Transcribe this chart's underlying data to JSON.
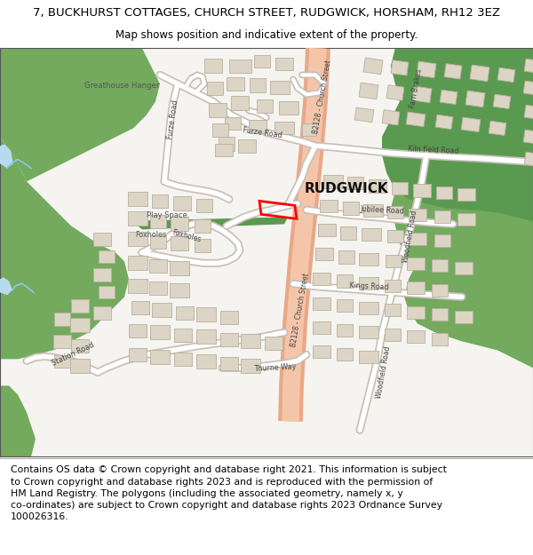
{
  "title_line1": "7, BUCKHURST COTTAGES, CHURCH STREET, RUDGWICK, HORSHAM, RH12 3EZ",
  "title_line2": "Map shows position and indicative extent of the property.",
  "footer": "Contains OS data © Crown copyright and database right 2021. This information is subject\nto Crown copyright and database rights 2023 and is reproduced with the permission of\nHM Land Registry. The polygons (including the associated geometry, namely x, y\nco-ordinates) are subject to Crown copyright and database rights 2023 Ordnance Survey\n100026316.",
  "map_bg": "#f5f4f0",
  "road_main_color": "#f2b89c",
  "road_secondary_color": "#ffffff",
  "green_color": "#73aa5e",
  "blue_color": "#b8daf0",
  "building_fill": "#dcd4c4",
  "building_edge": "#b8b0a0",
  "plot_color": "#ff0000",
  "title_fontsize": 9.5,
  "subtitle_fontsize": 8.5,
  "footer_fontsize": 7.8,
  "label_color": "#444444",
  "place_color": "#111111"
}
